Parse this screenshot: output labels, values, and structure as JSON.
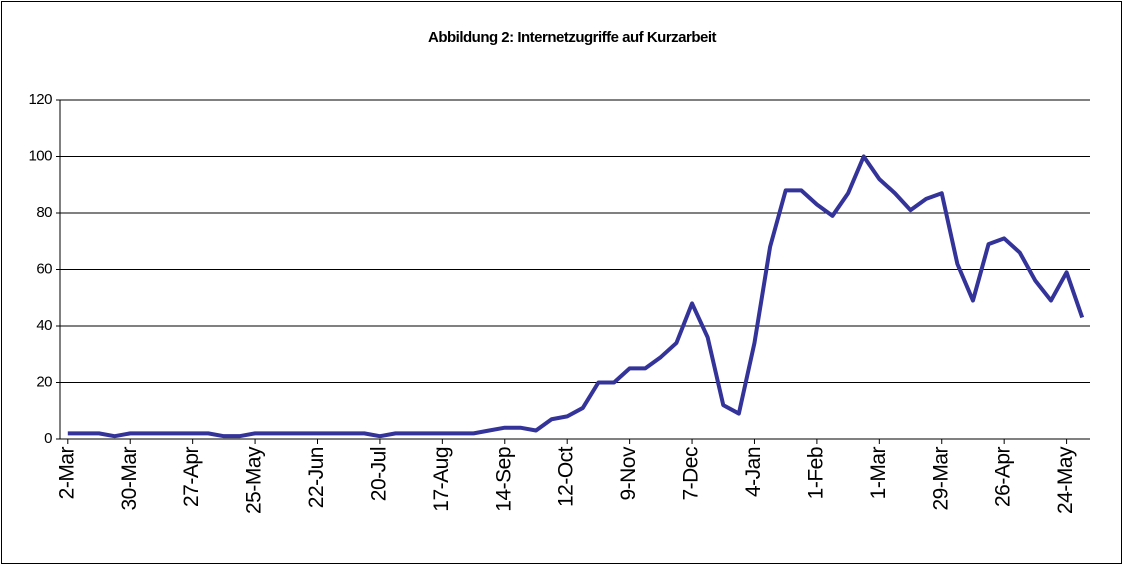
{
  "chart_data": {
    "type": "line",
    "title": "Abbildung 2: Internetzugriffe auf Kurzarbeit",
    "categories": [
      "2-Mar",
      null,
      null,
      null,
      "30-Mar",
      null,
      null,
      null,
      "27-Apr",
      null,
      null,
      null,
      "25-May",
      null,
      null,
      null,
      "22-Jun",
      null,
      null,
      null,
      "20-Jul",
      null,
      null,
      null,
      "17-Aug",
      null,
      null,
      null,
      "14-Sep",
      null,
      null,
      null,
      "12-Oct",
      null,
      null,
      null,
      "9-Nov",
      null,
      null,
      null,
      "7-Dec",
      null,
      null,
      null,
      "4-Jan",
      null,
      null,
      null,
      "1-Feb",
      null,
      null,
      null,
      "1-Mar",
      null,
      null,
      null,
      "29-Mar",
      null,
      null,
      null,
      "26-Apr",
      null,
      null,
      null,
      "24-May",
      null
    ],
    "series": [
      {
        "name": "Internetzugriffe",
        "color": "#333399",
        "values": [
          2,
          2,
          2,
          1,
          2,
          2,
          2,
          2,
          2,
          2,
          1,
          1,
          2,
          2,
          2,
          2,
          2,
          2,
          2,
          2,
          1,
          2,
          2,
          2,
          2,
          2,
          2,
          3,
          4,
          4,
          3,
          7,
          8,
          11,
          20,
          20,
          25,
          25,
          29,
          34,
          48,
          36,
          12,
          9,
          34,
          68,
          88,
          88,
          83,
          79,
          87,
          100,
          92,
          87,
          81,
          85,
          87,
          62,
          49,
          69,
          71,
          66,
          56,
          49,
          59,
          43
        ]
      }
    ],
    "ylim": [
      0,
      120
    ],
    "yticks": [
      0,
      20,
      40,
      60,
      80,
      100,
      120
    ],
    "grid": true
  }
}
